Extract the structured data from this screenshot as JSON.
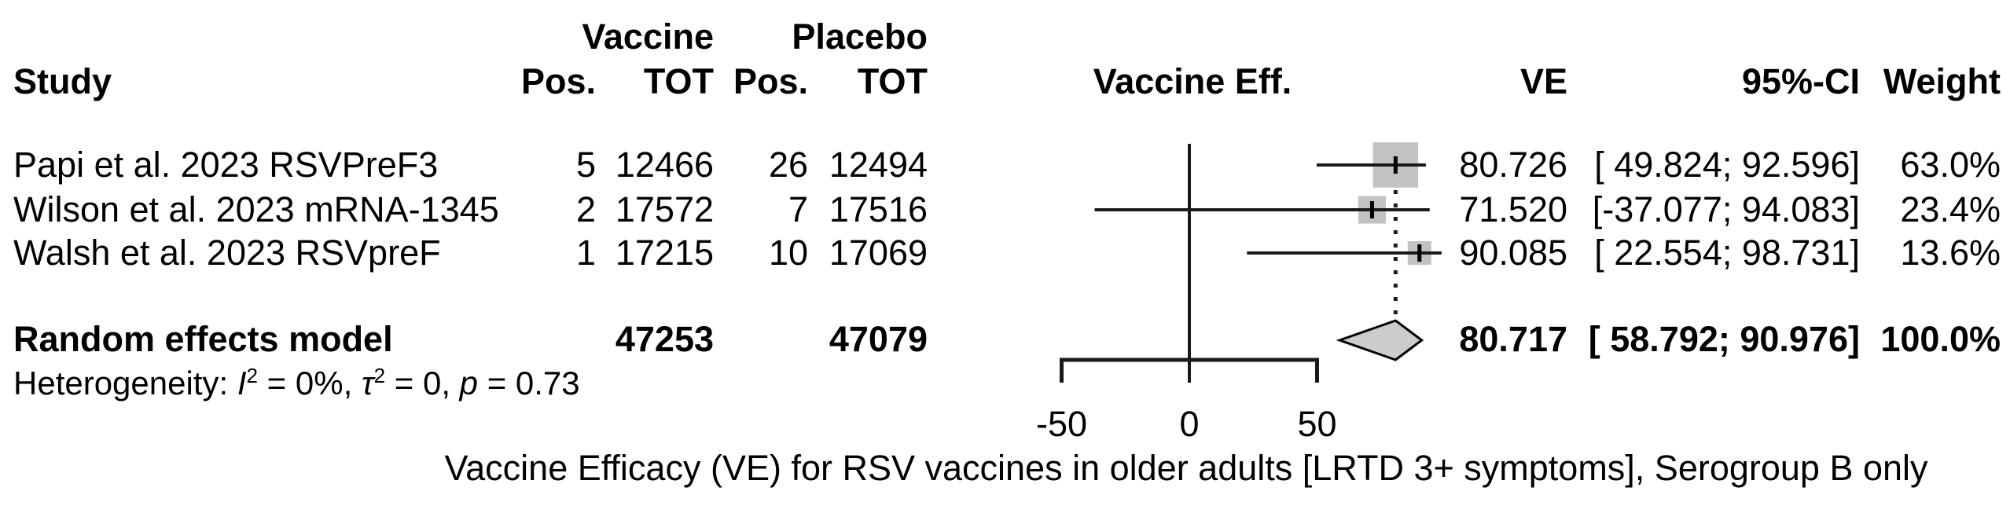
{
  "table_headers": {
    "study": "Study",
    "vaccine_group": "Vaccine",
    "placebo_group": "Placebo",
    "pos": "Pos.",
    "tot": "TOT",
    "effect_plot": "Vaccine Eff.",
    "ve": "VE",
    "ci": "95%-CI",
    "weight": "Weight"
  },
  "chart_data": {
    "type": "forest",
    "x_axis": {
      "ticks": [
        {
          "value": -50,
          "label": "-50"
        },
        {
          "value": 0,
          "label": "0"
        },
        {
          "value": 50,
          "label": "50"
        }
      ]
    },
    "studies": [
      {
        "label": "Papi et al. 2023 RSVPreF3",
        "vaccine_pos": "5",
        "vaccine_tot": "12466",
        "placebo_pos": "26",
        "placebo_tot": "12494",
        "ve": 80.726,
        "ci_low": 49.824,
        "ci_high": 92.596,
        "weight": 63.0,
        "ve_text": "80.726",
        "ci_text": "[ 49.824; 92.596]",
        "weight_text": "63.0%"
      },
      {
        "label": "Wilson et al. 2023 mRNA-1345",
        "vaccine_pos": "2",
        "vaccine_tot": "17572",
        "placebo_pos": "7",
        "placebo_tot": "17516",
        "ve": 71.52,
        "ci_low": -37.077,
        "ci_high": 94.083,
        "weight": 23.4,
        "ve_text": "71.520",
        "ci_text": "[-37.077; 94.083]",
        "weight_text": "23.4%"
      },
      {
        "label": "Walsh et al. 2023 RSVpreF",
        "vaccine_pos": "1",
        "vaccine_tot": "17215",
        "placebo_pos": "10",
        "placebo_tot": "17069",
        "ve": 90.085,
        "ci_low": 22.554,
        "ci_high": 98.731,
        "weight": 13.6,
        "ve_text": "90.085",
        "ci_text": "[ 22.554; 98.731]",
        "weight_text": "13.6%"
      }
    ],
    "pooled": {
      "label": "Random effects model",
      "vaccine_tot": "47253",
      "placebo_tot": "47079",
      "ve": 80.717,
      "ci_low": 58.792,
      "ci_high": 90.976,
      "ve_text": "80.717",
      "ci_text": "[ 58.792; 90.976]",
      "weight_text": "100.0%"
    },
    "heterogeneity": {
      "prefix": "Heterogeneity: ",
      "i_label": "I",
      "sq": "2",
      "i_rest": " = 0%, ",
      "tau_label": "τ",
      "tau_rest": " = 0, ",
      "p_label": "p",
      "p_rest": " = 0.73"
    },
    "caption": "Vaccine Efficacy (VE) for RSV vaccines in older adults [LRTD 3+ symptoms], Serogroup B only",
    "colors": {
      "square_fill": "#c2c2c2",
      "diamond_fill": "#cccccc",
      "line": "#1a1a1a",
      "text": "#000000"
    }
  }
}
